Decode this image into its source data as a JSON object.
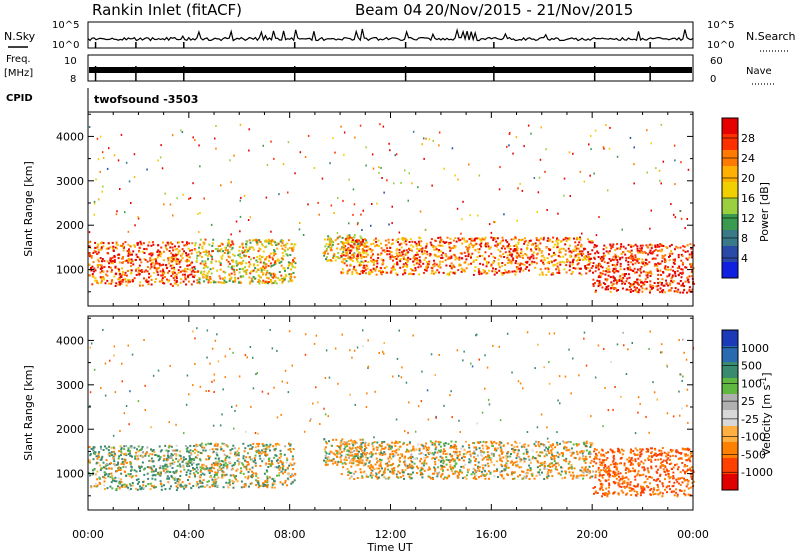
{
  "header": {
    "station": "Rankin Inlet (fitACF)",
    "beam": "Beam 04",
    "date_range": "20/Nov/2015 - 21/Nov/2015"
  },
  "strip": {
    "nsky_label": "N.Sky",
    "nsky_ticks": [
      "10^5",
      "10^0"
    ],
    "nsearch_label": "N.Search",
    "nsearch_ticks": [
      "10^5",
      "10^0"
    ],
    "freq_label_1": "Freq.",
    "freq_label_2": "[MHz]",
    "freq_ticks": [
      "10",
      "8"
    ],
    "nave_label": "Nave",
    "nave_ticks": [
      "60",
      "0"
    ],
    "cpid_label": "CPID",
    "cpid_value": "twofsound -3503"
  },
  "x_axis": {
    "label": "Time UT",
    "ticks": [
      "00:00",
      "04:00",
      "08:00",
      "12:00",
      "16:00",
      "20:00",
      "00:00"
    ]
  },
  "power_panel": {
    "ylabel": "Slant Range [km]",
    "yticks": [
      "1000",
      "2000",
      "3000",
      "4000"
    ],
    "colorbar_label": "Power [dB]",
    "colorbar_ticks": [
      "28",
      "24",
      "20",
      "16",
      "12",
      "8",
      "4"
    ],
    "colors": [
      "#e60000",
      "#ff3000",
      "#ff7a00",
      "#ffb000",
      "#f0d000",
      "#9ad040",
      "#3a9a50",
      "#3a7a88",
      "#2a4aa8",
      "#1020e0"
    ]
  },
  "velocity_panel": {
    "ylabel": "Slant Range [km]",
    "yticks": [
      "1000",
      "2000",
      "3000",
      "4000"
    ],
    "colorbar_label": "Velocity [m s",
    "colorbar_sup": "-1",
    "colorbar_label_end": "]",
    "colorbar_ticks": [
      "1000",
      "500",
      "100",
      "25",
      "-25",
      "-100",
      "-500",
      "-1000"
    ],
    "colors": [
      "#1a3ab8",
      "#2a6ab0",
      "#3a8a70",
      "#60b840",
      "#b0b0b0",
      "#d8d8d8",
      "#ffb040",
      "#ff8000",
      "#ff4000",
      "#e00000"
    ]
  },
  "chart_data": [
    {
      "type": "heatmap",
      "title": "Rankin Inlet (fitACF) Beam 04 20/Nov/2015 - 21/Nov/2015",
      "xlabel": "Time UT",
      "ylabel": "Slant Range [km]",
      "colorbar": "Power [dB]",
      "x_range_hours": [
        0,
        24
      ],
      "ylim": [
        180,
        4550
      ],
      "scale": [
        0,
        30
      ],
      "bands": [
        {
          "t_start": 0.0,
          "t_end": 4.2,
          "r_low": 650,
          "r_high": 1650,
          "value": 26
        },
        {
          "t_start": 4.2,
          "t_end": 8.2,
          "r_low": 700,
          "r_high": 1700,
          "value": 18
        },
        {
          "t_start": 9.3,
          "t_end": 11.0,
          "r_low": 1200,
          "r_high": 1800,
          "value": 16
        },
        {
          "t_start": 10.0,
          "t_end": 20.0,
          "r_low": 900,
          "r_high": 1750,
          "value": 24
        },
        {
          "t_start": 20.0,
          "t_end": 24.0,
          "r_low": 500,
          "r_high": 1600,
          "value": 28
        }
      ]
    },
    {
      "type": "heatmap",
      "title": "",
      "xlabel": "Time UT",
      "ylabel": "Slant Range [km]",
      "colorbar": "Velocity [m s-1]",
      "x_range_hours": [
        0,
        24
      ],
      "ylim": [
        180,
        4550
      ],
      "scale": [
        -1000,
        1000
      ],
      "bands": [
        {
          "t_start": 0.0,
          "t_end": 4.2,
          "r_low": 650,
          "r_high": 1650,
          "value": 100
        },
        {
          "t_start": 4.2,
          "t_end": 8.2,
          "r_low": 700,
          "r_high": 1700,
          "value": 0
        },
        {
          "t_start": 9.3,
          "t_end": 11.0,
          "r_low": 1200,
          "r_high": 1800,
          "value": -100
        },
        {
          "t_start": 10.0,
          "t_end": 20.0,
          "r_low": 900,
          "r_high": 1750,
          "value": -100
        },
        {
          "t_start": 20.0,
          "t_end": 24.0,
          "r_low": 500,
          "r_high": 1600,
          "value": -500
        }
      ]
    }
  ]
}
